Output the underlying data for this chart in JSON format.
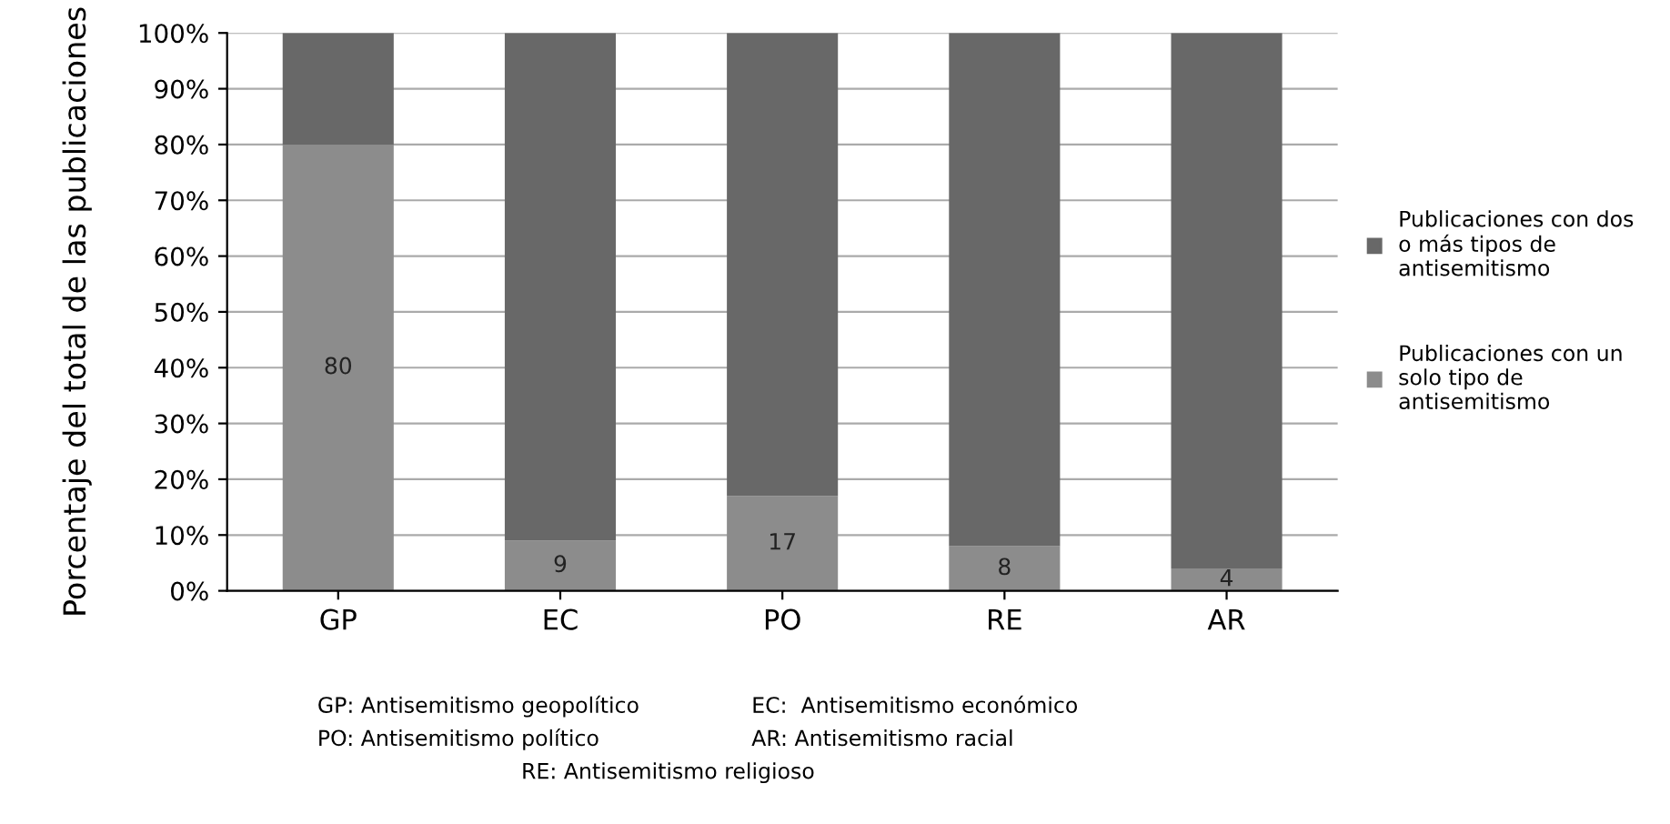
{
  "chart_data": {
    "type": "bar",
    "stacked": true,
    "ylabel": "Porcentaje del total de las publicaciones",
    "categories": [
      "GP",
      "EC",
      "PO",
      "RE",
      "AR"
    ],
    "series": [
      {
        "name": "Publicaciones con un solo tipo de antisemitismo",
        "color": "#8c8c8c",
        "values": [
          80,
          9,
          17,
          8,
          4
        ],
        "value_labels": [
          "80",
          "9",
          "17",
          "8",
          "4"
        ]
      },
      {
        "name": "Publicaciones con dos o más tipos de antisemitismo",
        "color": "#686868",
        "values": [
          20,
          91,
          83,
          92,
          96
        ]
      }
    ],
    "ylim": [
      0,
      100
    ],
    "yticks": [
      {
        "value": 0,
        "label": "0%"
      },
      {
        "value": 10,
        "label": "10%"
      },
      {
        "value": 20,
        "label": "20%"
      },
      {
        "value": 30,
        "label": "30%"
      },
      {
        "value": 40,
        "label": "40%"
      },
      {
        "value": 50,
        "label": "50%"
      },
      {
        "value": 60,
        "label": "60%"
      },
      {
        "value": 70,
        "label": "70%"
      },
      {
        "value": 80,
        "label": "80%"
      },
      {
        "value": 90,
        "label": "90%"
      },
      {
        "value": 100,
        "label": "100%"
      }
    ],
    "grid": "y",
    "legend": "right",
    "annotations": [
      "GP: Antisemitismo geopolítico",
      "EC:  Antisemitismo económico",
      "PO: Antisemitismo político",
      "AR: Antisemitismo racial",
      "RE: Antisemitismo religioso"
    ]
  }
}
